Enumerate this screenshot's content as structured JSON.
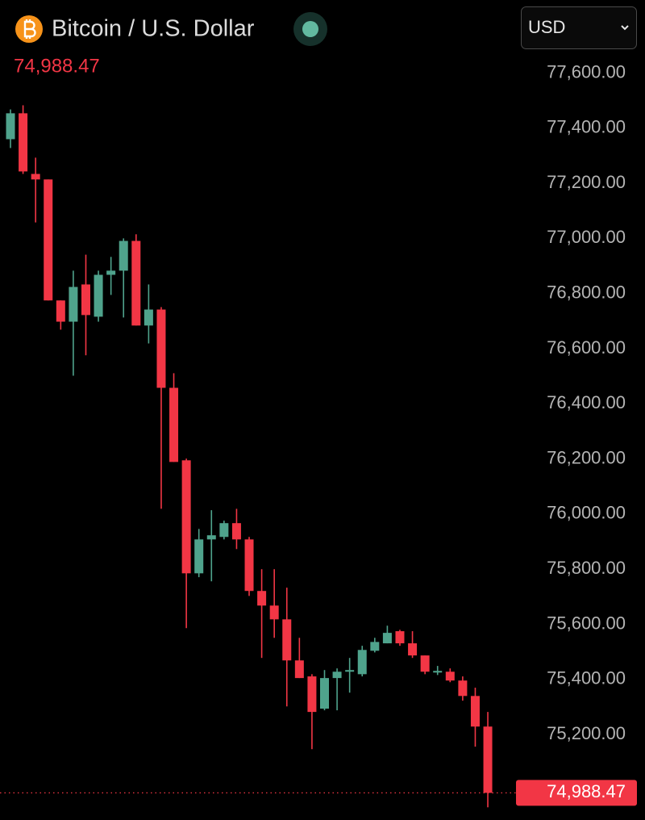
{
  "chart_data": {
    "type": "candlestick",
    "title": "Bitcoin / U.S. Dollar",
    "currency": "USD",
    "last": {
      "value": 74988.47,
      "label": "74,988.47"
    },
    "up_color": "#4fa38c",
    "down_color": "#f23645",
    "ylim": [
      74890,
      77865
    ],
    "yticks": [
      {
        "value": 75200,
        "label": "75,200.00"
      },
      {
        "value": 75400,
        "label": "75,400.00"
      },
      {
        "value": 75600,
        "label": "75,600.00"
      },
      {
        "value": 75800,
        "label": "75,800.00"
      },
      {
        "value": 76000,
        "label": "76,000.00"
      },
      {
        "value": 76200,
        "label": "76,200.00"
      },
      {
        "value": 76400,
        "label": "76,400.00"
      },
      {
        "value": 76600,
        "label": "76,600.00"
      },
      {
        "value": 76800,
        "label": "76,800.00"
      },
      {
        "value": 77000,
        "label": "77,000.00"
      },
      {
        "value": 77200,
        "label": "77,200.00"
      },
      {
        "value": 77400,
        "label": "77,400.00"
      },
      {
        "value": 77600,
        "label": "77,600.00"
      }
    ],
    "open": [
      77360,
      77454,
      77234,
      77214,
      76775,
      76698,
      76833,
      76716,
      76868,
      76883,
      76991,
      76684,
      76742,
      76458,
      76195,
      75785,
      75908,
      75917,
      75967,
      75908,
      75721,
      75668,
      75618,
      75469,
      75411,
      75294,
      75405,
      75428,
      75419,
      75504,
      75531,
      75575,
      75531,
      75487,
      75425,
      75428,
      75396,
      75340,
      75229
    ],
    "high": [
      77468,
      77483,
      77293,
      77214,
      76775,
      76883,
      76941,
      76883,
      76933,
      77000,
      77015,
      76833,
      76751,
      76511,
      76201,
      75946,
      76014,
      75976,
      76019,
      75917,
      75800,
      75800,
      75733,
      75551,
      75419,
      75434,
      75440,
      75478,
      75522,
      75551,
      75595,
      75580,
      75575,
      75487,
      75449,
      75440,
      75411,
      75370,
      75282
    ],
    "low": [
      77328,
      77234,
      77058,
      76775,
      76669,
      76502,
      76576,
      76698,
      76795,
      76713,
      76684,
      76619,
      76019,
      76189,
      75586,
      75771,
      75756,
      75908,
      75873,
      75703,
      75478,
      75551,
      75302,
      75405,
      75147,
      75288,
      75288,
      75352,
      75411,
      75498,
      75531,
      75522,
      75478,
      75419,
      75416,
      75390,
      75323,
      75156,
      74936
    ],
    "close": [
      77454,
      77243,
      77214,
      76775,
      76698,
      76824,
      76722,
      76868,
      76883,
      76991,
      76684,
      76742,
      76458,
      76189,
      75785,
      75908,
      75923,
      75967,
      75908,
      75721,
      75668,
      75618,
      75469,
      75405,
      75282,
      75405,
      75428,
      75434,
      75507,
      75536,
      75569,
      75531,
      75487,
      75428,
      75431,
      75396,
      75340,
      75229,
      74988.47
    ]
  }
}
